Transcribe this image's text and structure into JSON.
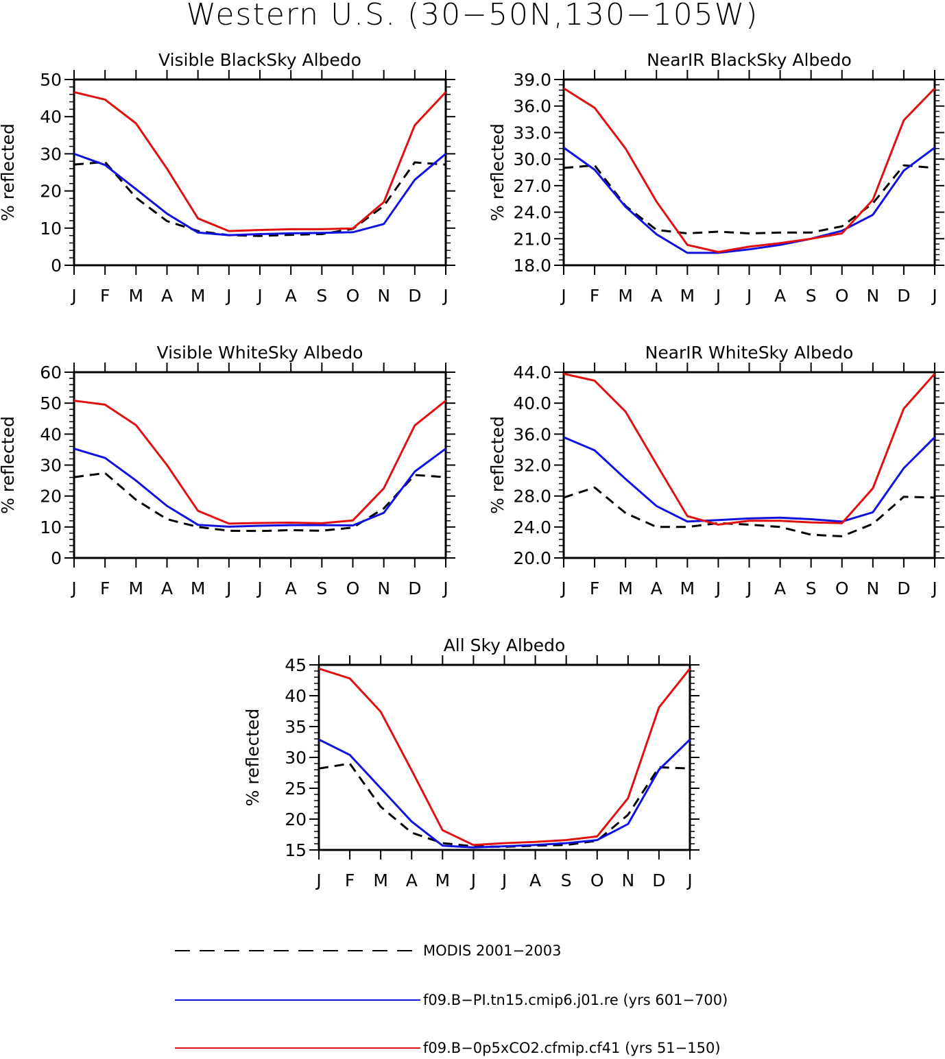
{
  "title": "Western U.S. (30−50N,130−105W)",
  "months": [
    "J",
    "F",
    "M",
    "A",
    "M",
    "J",
    "J",
    "A",
    "S",
    "O",
    "N",
    "D",
    "J"
  ],
  "colors": {
    "obs": "#000000",
    "case1": "#1010e0",
    "case2": "#e01010"
  },
  "legend": [
    {
      "label": "MODIS 2001−2003",
      "style": "dashed",
      "color": "#000000"
    },
    {
      "label": "f09.B−PI.tn15.cmip6.j01.re (yrs 601−700)",
      "style": "solid",
      "color": "#1010e0"
    },
    {
      "label": "f09.B−0p5xCO2.cfmip.cf41 (yrs 51−150)",
      "style": "solid",
      "color": "#e01010"
    }
  ],
  "chart_data": [
    {
      "type": "line",
      "title": "Visible BlackSky Albedo",
      "ylabel": "% reflected",
      "ylim": [
        0,
        50
      ],
      "yticks": [
        "0",
        "10",
        "20",
        "30",
        "40",
        "50"
      ],
      "categories": [
        "J",
        "F",
        "M",
        "A",
        "M",
        "J",
        "J",
        "A",
        "S",
        "O",
        "N",
        "D",
        "J"
      ],
      "series": [
        {
          "name": "MODIS 2001−2003",
          "values": [
            27.1,
            27.8,
            18.2,
            11.9,
            9.2,
            8.1,
            7.9,
            8.2,
            8.4,
            9.8,
            16.0,
            27.7,
            27.1
          ]
        },
        {
          "name": "f09.B−PI.tn15.cmip6.j01.re (yrs 601−700)",
          "values": [
            30.0,
            27.0,
            20.5,
            13.9,
            8.8,
            8.1,
            8.4,
            8.6,
            8.7,
            8.9,
            11.1,
            23.0,
            30.0
          ]
        },
        {
          "name": "f09.B−0p5xCO2.cfmip.cf41 (yrs 51−150)",
          "values": [
            46.6,
            44.6,
            38.2,
            26.0,
            12.6,
            9.2,
            9.5,
            9.7,
            9.7,
            9.9,
            17.0,
            37.7,
            46.6
          ]
        }
      ]
    },
    {
      "type": "line",
      "title": "NearIR BlackSky Albedo",
      "ylabel": "% reflected",
      "ylim": [
        18,
        39
      ],
      "yticks": [
        "18.0",
        "21.0",
        "24.0",
        "27.0",
        "30.0",
        "33.0",
        "36.0",
        "39.0"
      ],
      "categories": [
        "J",
        "F",
        "M",
        "A",
        "M",
        "J",
        "J",
        "A",
        "S",
        "O",
        "N",
        "D",
        "J"
      ],
      "series": [
        {
          "name": "MODIS 2001−2003",
          "values": [
            29.0,
            29.3,
            24.7,
            22.0,
            21.6,
            21.8,
            21.6,
            21.7,
            21.7,
            22.4,
            25.0,
            29.3,
            29.0
          ]
        },
        {
          "name": "f09.B−PI.tn15.cmip6.j01.re (yrs 601−700)",
          "values": [
            31.3,
            28.8,
            24.6,
            21.5,
            19.4,
            19.4,
            19.8,
            20.3,
            21.0,
            21.9,
            23.7,
            28.7,
            31.3
          ]
        },
        {
          "name": "f09.B−0p5xCO2.cfmip.cf41 (yrs 51−150)",
          "values": [
            38.0,
            35.8,
            31.2,
            25.2,
            20.3,
            19.5,
            20.1,
            20.5,
            21.0,
            21.6,
            25.4,
            34.4,
            38.0
          ]
        }
      ]
    },
    {
      "type": "line",
      "title": "Visible WhiteSky Albedo",
      "ylabel": "% reflected",
      "ylim": [
        0,
        60
      ],
      "yticks": [
        "0",
        "10",
        "20",
        "30",
        "40",
        "50",
        "60"
      ],
      "categories": [
        "J",
        "F",
        "M",
        "A",
        "M",
        "J",
        "J",
        "A",
        "S",
        "O",
        "N",
        "D",
        "J"
      ],
      "series": [
        {
          "name": "MODIS 2001−2003",
          "values": [
            26.1,
            27.4,
            18.8,
            12.5,
            10.0,
            8.8,
            8.7,
            9.0,
            8.8,
            9.8,
            16.0,
            26.8,
            26.1
          ]
        },
        {
          "name": "f09.B−PI.tn15.cmip6.j01.re (yrs 601−700)",
          "values": [
            35.3,
            32.3,
            25.0,
            16.8,
            10.7,
            10.1,
            10.4,
            10.6,
            10.6,
            10.5,
            14.6,
            27.9,
            35.3
          ]
        },
        {
          "name": "f09.B−0p5xCO2.cfmip.cf41 (yrs 51−150)",
          "values": [
            50.8,
            49.5,
            42.9,
            30.0,
            15.2,
            11.1,
            11.3,
            11.4,
            11.2,
            12.1,
            22.5,
            42.8,
            50.8
          ]
        }
      ]
    },
    {
      "type": "line",
      "title": "NearIR WhiteSky Albedo",
      "ylabel": "% reflected",
      "ylim": [
        20,
        44
      ],
      "yticks": [
        "20.0",
        "24.0",
        "28.0",
        "32.0",
        "36.0",
        "40.0",
        "44.0"
      ],
      "categories": [
        "J",
        "F",
        "M",
        "A",
        "M",
        "J",
        "J",
        "A",
        "S",
        "O",
        "N",
        "D",
        "J"
      ],
      "series": [
        {
          "name": "MODIS 2001−2003",
          "values": [
            27.8,
            29.1,
            25.8,
            24.0,
            24.0,
            24.5,
            24.3,
            24.0,
            23.0,
            22.8,
            24.4,
            27.9,
            27.8
          ]
        },
        {
          "name": "f09.B−PI.tn15.cmip6.j01.re (yrs 601−700)",
          "values": [
            35.6,
            33.9,
            30.2,
            26.7,
            24.7,
            24.9,
            25.1,
            25.2,
            25.0,
            24.7,
            25.9,
            31.6,
            35.6
          ]
        },
        {
          "name": "f09.B−0p5xCO2.cfmip.cf41 (yrs 51−150)",
          "values": [
            43.8,
            42.9,
            38.9,
            32.1,
            25.4,
            24.3,
            24.8,
            24.8,
            24.6,
            24.5,
            29.0,
            39.3,
            43.8
          ]
        }
      ]
    },
    {
      "type": "line",
      "title": "All Sky Albedo",
      "ylabel": "% reflected",
      "ylim": [
        15,
        45
      ],
      "yticks": [
        "15",
        "20",
        "25",
        "30",
        "35",
        "40",
        "45"
      ],
      "categories": [
        "J",
        "F",
        "M",
        "A",
        "M",
        "J",
        "J",
        "A",
        "S",
        "O",
        "N",
        "D",
        "J"
      ],
      "series": [
        {
          "name": "MODIS 2001−2003",
          "values": [
            28.2,
            29.0,
            22.0,
            17.8,
            16.1,
            15.6,
            15.5,
            15.7,
            15.8,
            16.5,
            20.7,
            28.4,
            28.2
          ]
        },
        {
          "name": "f09.B−PI.tn15.cmip6.j01.re (yrs 601−700)",
          "values": [
            32.9,
            30.4,
            25.0,
            19.6,
            15.7,
            15.4,
            15.6,
            15.8,
            16.1,
            16.6,
            19.2,
            28.0,
            32.9
          ]
        },
        {
          "name": "f09.B−0p5xCO2.cfmip.cf41 (yrs 51−150)",
          "values": [
            44.4,
            42.8,
            37.4,
            27.9,
            18.2,
            15.8,
            16.1,
            16.3,
            16.6,
            17.2,
            23.4,
            38.1,
            44.4
          ]
        }
      ]
    }
  ]
}
